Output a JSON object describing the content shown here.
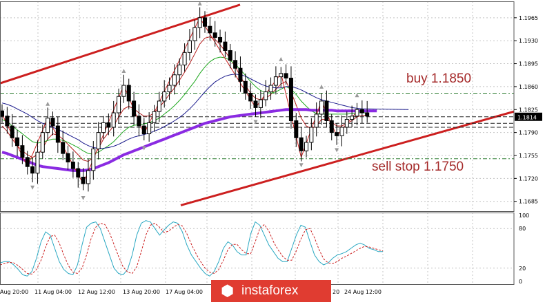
{
  "symbol_price": "1.1814",
  "annotations": {
    "buy": "buy 1.1850",
    "sell": "sell stop 1.1750"
  },
  "logo": {
    "text": "instaforex",
    "icon": "instaforex-logo-icon"
  },
  "colors": {
    "trendline": "#cc1f1f",
    "ma_purple": "#8a2be2",
    "ma_navy": "#1a1a8c",
    "ma_green": "#1fa81f",
    "ma_red": "#b31b1b",
    "level_line": "#2e7d32",
    "annotation": "#a52a2a",
    "stoch_main": "#2aa8c2",
    "stoch_signal": "#cc2222",
    "logo_bg": "#e03c31"
  },
  "chart_data": [
    {
      "type": "candlestick",
      "title": "",
      "xlabel": "",
      "ylabel": "",
      "ylim": [
        1.167,
        1.199
      ],
      "y_ticks": [
        "1.1965",
        "1.1930",
        "1.1895",
        "1.1860",
        "1.1825",
        "1.1790",
        "1.1755",
        "1.1720",
        "1.1685"
      ],
      "x_ticks": [
        "Aug 20:00",
        "11 Aug 04:00",
        "12 Aug 12:00",
        "13 Aug 20:00",
        "17 Aug 04:00",
        "20",
        "24 Aug 12:00"
      ],
      "current_price": 1.1814,
      "levels": [
        {
          "label": "buy 1.1850",
          "value": 1.185
        },
        {
          "label": "sell stop 1.1750",
          "value": 1.175
        }
      ],
      "close": [
        1.1815,
        1.18,
        1.1782,
        1.177,
        1.1752,
        1.1738,
        1.1728,
        1.176,
        1.179,
        1.1812,
        1.18,
        1.1775,
        1.1758,
        1.1745,
        1.1735,
        1.1722,
        1.1712,
        1.1732,
        1.1765,
        1.179,
        1.1805,
        1.1798,
        1.182,
        1.1845,
        1.1862,
        1.1838,
        1.1815,
        1.18,
        1.1788,
        1.1805,
        1.1822,
        1.1838,
        1.1852,
        1.1862,
        1.1878,
        1.1893,
        1.1912,
        1.193,
        1.195,
        1.1965,
        1.1952,
        1.1942,
        1.1935,
        1.1928,
        1.1915,
        1.19,
        1.1888,
        1.1868,
        1.185,
        1.1838,
        1.1828,
        1.184,
        1.1852,
        1.1862,
        1.1875,
        1.188,
        1.1873,
        1.1808,
        1.1782,
        1.1762,
        1.1775,
        1.1798,
        1.1818,
        1.1838,
        1.1808,
        1.179,
        1.1785,
        1.1798,
        1.181,
        1.1815,
        1.1825,
        1.182,
        1.1815
      ],
      "series": [
        {
          "name": "",
          "values": [
            1.18,
            1.1792,
            1.178,
            1.177,
            1.1762,
            1.1756,
            1.1752,
            1.1756,
            1.1766,
            1.178,
            1.1788,
            1.1786,
            1.178,
            1.1772,
            1.1764,
            1.1756,
            1.1748,
            1.1746,
            1.1752,
            1.1766,
            1.178,
            1.179,
            1.18,
            1.1814,
            1.1826,
            1.183,
            1.1826,
            1.182,
            1.1815,
            1.1815,
            1.182,
            1.1828,
            1.1838,
            1.1848,
            1.1858,
            1.187,
            1.1882,
            1.1895,
            1.191,
            1.1925,
            1.1934,
            1.1936,
            1.1932,
            1.1924,
            1.1914,
            1.1902,
            1.189,
            1.1876,
            1.1862,
            1.185,
            1.1842,
            1.184,
            1.1842,
            1.1848,
            1.1856,
            1.1864,
            1.1868,
            1.1852,
            1.1832,
            1.1812,
            1.18,
            1.1796,
            1.18,
            1.181,
            1.181,
            1.1806,
            1.18,
            1.18,
            1.1804,
            1.1808,
            1.1814,
            1.1816,
            1.1816
          ]
        },
        {
          "name": "",
          "values": [
            1.181,
            1.1806,
            1.18,
            1.1794,
            1.1788,
            1.1782,
            1.1776,
            1.1774,
            1.1775,
            1.1778,
            1.178,
            1.178,
            1.1778,
            1.1775,
            1.1771,
            1.1767,
            1.1762,
            1.1758,
            1.1757,
            1.176,
            1.1765,
            1.177,
            1.1776,
            1.1784,
            1.1792,
            1.1798,
            1.1801,
            1.1802,
            1.1803,
            1.1805,
            1.1808,
            1.1812,
            1.1818,
            1.1824,
            1.1831,
            1.1839,
            1.1848,
            1.1858,
            1.1868,
            1.188,
            1.189,
            1.1898,
            1.1903,
            1.1905,
            1.1904,
            1.19,
            1.1894,
            1.1886,
            1.1877,
            1.1868,
            1.186,
            1.1854,
            1.1851,
            1.185,
            1.1852,
            1.1856,
            1.186,
            1.1856,
            1.1848,
            1.1838,
            1.183,
            1.1823,
            1.1819,
            1.1818,
            1.1818,
            1.1818,
            1.1818,
            1.1818,
            1.1818,
            1.1819,
            1.182,
            1.182,
            1.182
          ]
        },
        {
          "name": "",
          "values": [
            1.1835,
            1.1833,
            1.183,
            1.1826,
            1.1822,
            1.1818,
            1.1813,
            1.1808,
            1.1804,
            1.1801,
            1.1798,
            1.1795,
            1.1791,
            1.1787,
            1.1783,
            1.1779,
            1.1774,
            1.177,
            1.1767,
            1.1766,
            1.1766,
            1.1767,
            1.1769,
            1.1772,
            1.1776,
            1.178,
            1.1783,
            1.1785,
            1.1787,
            1.1789,
            1.1792,
            1.1795,
            1.1799,
            1.1803,
            1.1808,
            1.1813,
            1.1819,
            1.1826,
            1.1834,
            1.1843,
            1.1852,
            1.186,
            1.1867,
            1.1872,
            1.1876,
            1.1878,
            1.1879,
            1.1878,
            1.1876,
            1.1872,
            1.1868,
            1.1864,
            1.1861,
            1.1859,
            1.1858,
            1.1858,
            1.186,
            1.186,
            1.1858,
            1.1855,
            1.1851,
            1.1847,
            1.1843,
            1.184,
            1.1838,
            1.1836,
            1.1834,
            1.1832,
            1.183,
            1.1828,
            1.1827,
            1.1826,
            1.1826
          ]
        },
        {
          "name": "",
          "values": [
            1.176,
            1.1758,
            1.1755,
            1.1752,
            1.1749,
            1.1746,
            1.1743,
            1.174,
            1.1738,
            1.1737,
            1.1736,
            1.1735,
            1.1734,
            1.1733,
            1.1732,
            1.1732,
            1.1732,
            1.1733,
            1.1735,
            1.1738,
            1.1741,
            1.1744,
            1.1748,
            1.1752,
            1.1756,
            1.1759,
            1.1762,
            1.1765,
            1.1768,
            1.1771,
            1.1774,
            1.1777,
            1.178,
            1.1783,
            1.1786,
            1.1789,
            1.1792,
            1.1795,
            1.1798,
            1.1801,
            1.1804,
            1.1806,
            1.1808,
            1.181,
            1.1812,
            1.1814,
            1.1815,
            1.1816,
            1.1817,
            1.1818,
            1.1819,
            1.182,
            1.1821,
            1.1822,
            1.1823,
            1.1824,
            1.1825,
            1.1825,
            1.1825,
            1.1825,
            1.1825,
            1.1824,
            1.1824,
            1.1824,
            1.1824,
            1.1824,
            1.1823,
            1.1823,
            1.1823,
            1.1823,
            1.1823,
            1.1823,
            1.1823
          ]
        }
      ]
    },
    {
      "type": "line",
      "title": "",
      "xlabel": "",
      "ylabel": "",
      "ylim": [
        0,
        100
      ],
      "y_ticks": [
        "100",
        "80",
        "20",
        "0"
      ],
      "series": [
        {
          "name": "",
          "values": [
            28,
            30,
            30,
            25,
            18,
            10,
            8,
            15,
            35,
            60,
            75,
            70,
            50,
            30,
            18,
            12,
            10,
            25,
            55,
            82,
            88,
            90,
            80,
            60,
            40,
            20,
            12,
            10,
            18,
            40,
            70,
            88,
            92,
            90,
            80,
            70,
            78,
            85,
            90,
            88,
            75,
            55,
            40,
            30,
            20,
            12,
            8,
            15,
            30,
            50,
            60,
            55,
            45,
            40,
            40,
            72,
            90,
            85,
            70,
            55,
            45,
            35,
            30,
            30,
            50,
            70,
            85,
            82,
            60,
            40,
            30,
            25,
            28,
            35,
            40,
            42,
            45,
            50,
            55,
            58,
            55,
            50,
            48,
            45,
            45
          ]
        },
        {
          "name": "",
          "values": [
            25,
            27,
            29,
            28,
            24,
            18,
            12,
            11,
            18,
            32,
            52,
            68,
            70,
            58,
            40,
            24,
            14,
            12,
            20,
            40,
            65,
            82,
            88,
            86,
            74,
            56,
            38,
            22,
            14,
            12,
            22,
            45,
            70,
            85,
            88,
            82,
            74,
            76,
            82,
            86,
            84,
            72,
            56,
            42,
            30,
            20,
            14,
            12,
            18,
            32,
            48,
            56,
            56,
            48,
            42,
            42,
            60,
            80,
            86,
            76,
            60,
            48,
            38,
            32,
            32,
            46,
            64,
            78,
            80,
            66,
            48,
            34,
            28,
            27,
            30,
            35,
            38,
            42,
            46,
            50,
            53,
            52,
            50,
            48,
            46
          ]
        }
      ]
    }
  ]
}
